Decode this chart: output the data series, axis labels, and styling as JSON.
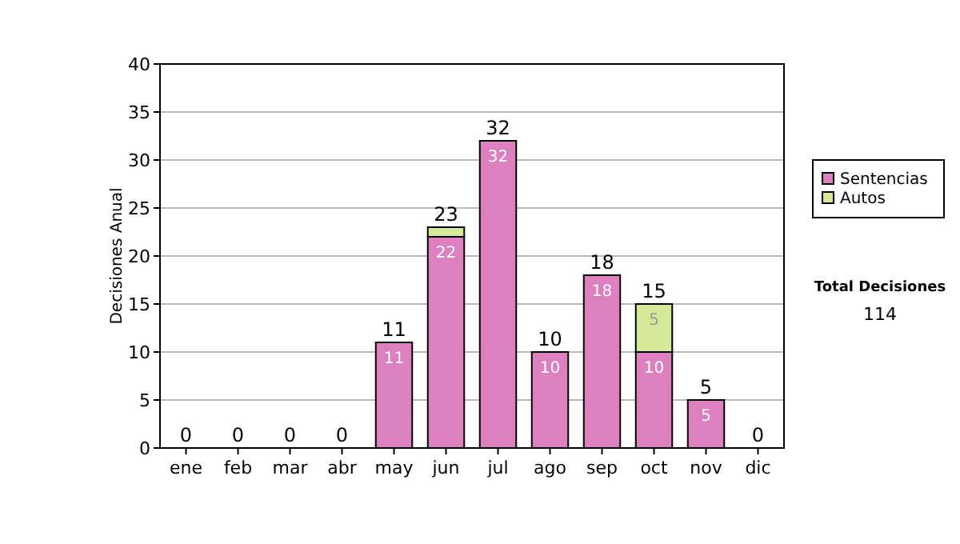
{
  "chart_data": {
    "type": "bar",
    "stacked": true,
    "ylabel": "Decisiones Anual",
    "categories": [
      "ene",
      "feb",
      "mar",
      "abr",
      "may",
      "jun",
      "jul",
      "ago",
      "sep",
      "oct",
      "nov",
      "dic"
    ],
    "series": [
      {
        "name": "Sentencias",
        "color": "#dd80c0",
        "values": [
          0,
          0,
          0,
          0,
          11,
          22,
          32,
          10,
          18,
          10,
          5,
          0
        ],
        "value_labels": [
          null,
          null,
          null,
          null,
          "11",
          "22",
          "32",
          "10",
          "18",
          "10",
          "5",
          null
        ]
      },
      {
        "name": "Autos",
        "color": "#d4ea98",
        "values": [
          0,
          0,
          0,
          0,
          0,
          1,
          0,
          0,
          0,
          5,
          0,
          0
        ],
        "value_labels": [
          null,
          null,
          null,
          null,
          null,
          null,
          null,
          null,
          null,
          "5",
          null,
          null
        ]
      }
    ],
    "totals": [
      "0",
      "0",
      "0",
      "0",
      "11",
      "23",
      "32",
      "10",
      "18",
      "15",
      "5",
      "0"
    ],
    "ylim": [
      0,
      40
    ],
    "yticks": [
      0,
      5,
      10,
      15,
      20,
      25,
      30,
      35,
      40
    ],
    "grid": "y",
    "legend": "right",
    "annotations": [
      "Total Decisiones",
      "114"
    ]
  }
}
